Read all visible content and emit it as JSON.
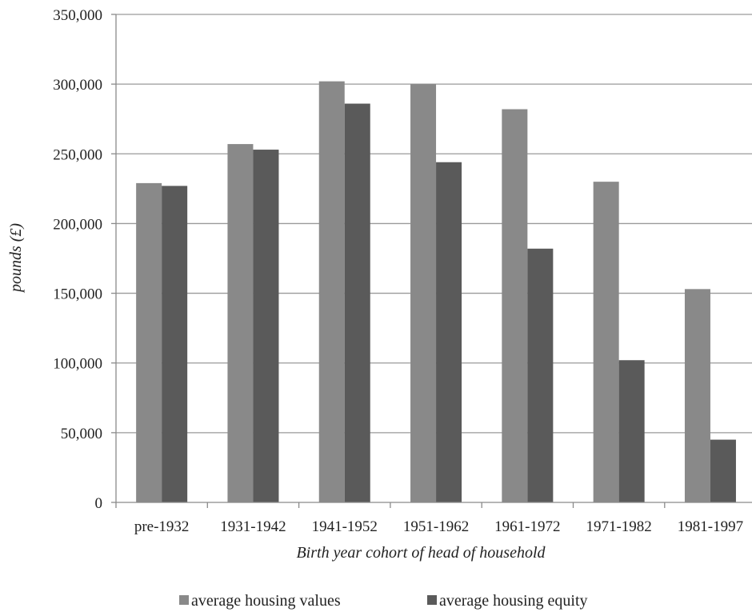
{
  "chart_data": {
    "type": "bar",
    "categories": [
      "pre-1932",
      "1931-1942",
      "1941-1952",
      "1951-1962",
      "1961-1972",
      "1971-1982",
      "1981-1997"
    ],
    "series": [
      {
        "name": "average housing values",
        "values": [
          229000,
          257000,
          302000,
          300000,
          282000,
          230000,
          153000
        ],
        "color": "#898989"
      },
      {
        "name": "average housing equity",
        "values": [
          227000,
          253000,
          286000,
          244000,
          182000,
          102000,
          45000
        ],
        "color": "#5a5a5a"
      }
    ],
    "title": "",
    "xlabel": "Birth year cohort of head of household",
    "ylabel": "pounds (£)",
    "ylim": [
      0,
      350000
    ],
    "yticks": [
      0,
      50000,
      100000,
      150000,
      200000,
      250000,
      300000,
      350000
    ],
    "ytick_labels": [
      "0",
      "50,000",
      "100,000",
      "150,000",
      "200,000",
      "250,000",
      "300,000",
      "350,000"
    ],
    "grid": true,
    "legend_position": "bottom"
  }
}
